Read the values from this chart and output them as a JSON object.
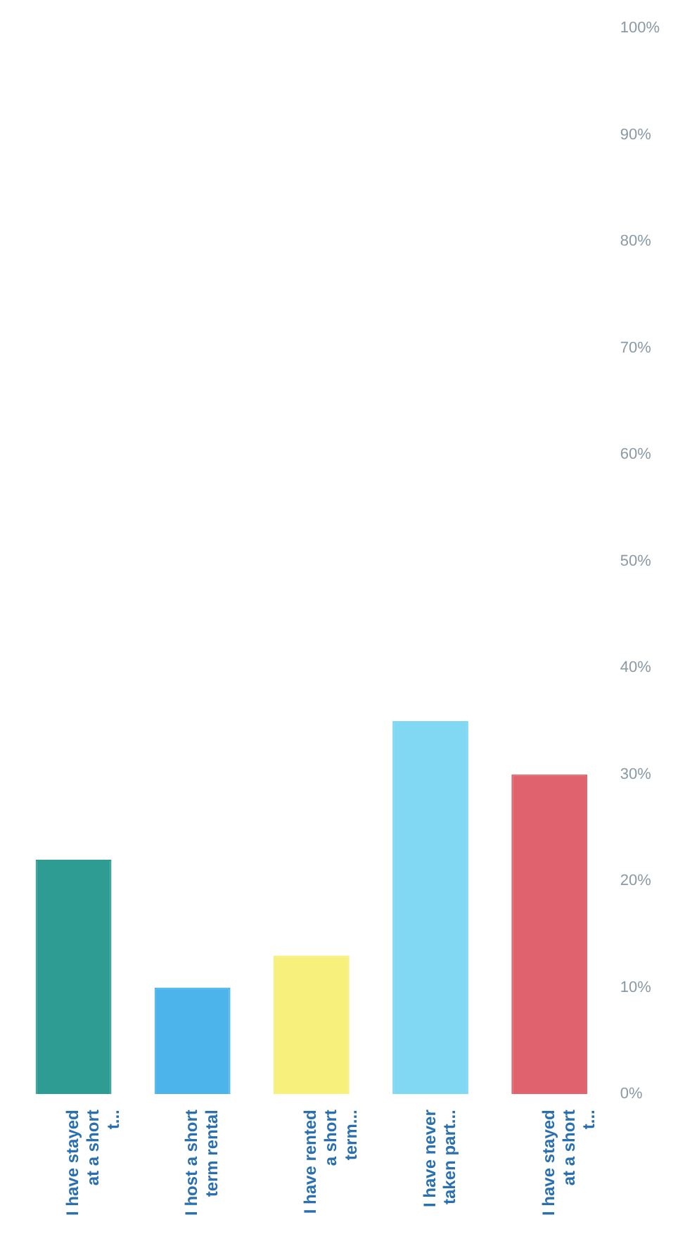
{
  "chart_data": {
    "type": "bar",
    "categories": [
      "I have stayed at a short t...",
      "I host a short term rental",
      "I have rented a short term...",
      "I have never taken part...",
      "I have stayed at a short t..."
    ],
    "values": [
      22,
      10,
      13,
      35,
      30
    ],
    "colors": [
      "#2e9c92",
      "#4cb4ea",
      "#f7f07c",
      "#80d8f2",
      "#e0626f"
    ],
    "ylim": [
      0,
      100
    ],
    "yticks": [
      {
        "value": 0,
        "label": "0%"
      },
      {
        "value": 10,
        "label": "10%"
      },
      {
        "value": 20,
        "label": "20%"
      },
      {
        "value": 30,
        "label": "30%"
      },
      {
        "value": 40,
        "label": "40%"
      },
      {
        "value": 50,
        "label": "50%"
      },
      {
        "value": 60,
        "label": "60%"
      },
      {
        "value": 70,
        "label": "70%"
      },
      {
        "value": 80,
        "label": "80%"
      },
      {
        "value": 90,
        "label": "90%"
      },
      {
        "value": 100,
        "label": "100%"
      }
    ],
    "grid": false,
    "legend": false
  }
}
